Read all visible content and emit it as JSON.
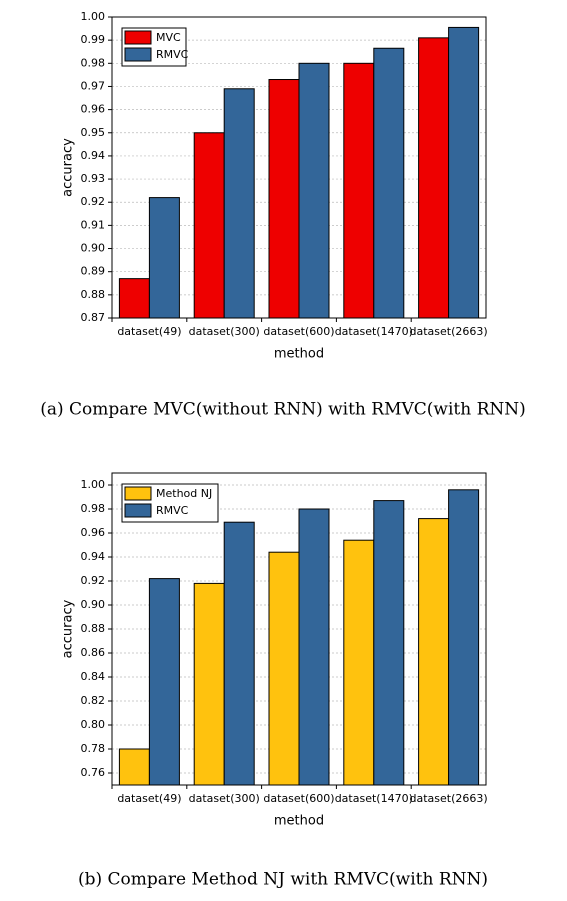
{
  "chart_data": [
    {
      "type": "bar",
      "caption": "(a) Compare MVC(without RNN) with RMVC(with RNN)",
      "xlabel": "method",
      "ylabel": "accuracy",
      "categories": [
        "dataset(49)",
        "dataset(300)",
        "dataset(600)",
        "dataset(1470)",
        "dataset(2663)"
      ],
      "series": [
        {
          "name": "MVC",
          "color": "#ee0000",
          "values": [
            0.887,
            0.95,
            0.973,
            0.98,
            0.991
          ]
        },
        {
          "name": "RMVC",
          "color": "#336699",
          "values": [
            0.922,
            0.969,
            0.98,
            0.9865,
            0.9955
          ]
        }
      ],
      "ylim": [
        0.87,
        1.0
      ],
      "yticks": [
        0.87,
        0.88,
        0.89,
        {
          "value": 0.9,
          "label": "0.90"
        },
        0.91,
        0.92,
        0.93,
        0.94,
        0.95,
        0.96,
        0.97,
        0.98,
        0.99,
        {
          "value": 1.0,
          "label": "1.00"
        }
      ],
      "grid": true,
      "legend": "top-left"
    },
    {
      "type": "bar",
      "caption": "(b) Compare Method NJ with RMVC(with RNN)",
      "xlabel": "method",
      "ylabel": "accuracy",
      "categories": [
        "dataset(49)",
        "dataset(300)",
        "dataset(600)",
        "dataset(1470)",
        "dataset(2663)"
      ],
      "series": [
        {
          "name": "Method NJ",
          "color": "#ffc20e",
          "values": [
            0.78,
            0.918,
            0.944,
            0.954,
            0.972
          ]
        },
        {
          "name": "RMVC",
          "color": "#336699",
          "values": [
            0.922,
            0.969,
            0.98,
            0.987,
            0.996
          ]
        }
      ],
      "ylim": [
        0.75,
        1.01
      ],
      "yticks": [
        0.76,
        0.78,
        {
          "value": 0.8,
          "label": "0.80"
        },
        0.82,
        0.84,
        0.86,
        0.88,
        {
          "value": 0.9,
          "label": "0.90"
        },
        0.92,
        0.94,
        0.96,
        0.98,
        {
          "value": 1.0,
          "label": "1.00"
        }
      ],
      "grid": true,
      "legend": "top-left"
    }
  ]
}
